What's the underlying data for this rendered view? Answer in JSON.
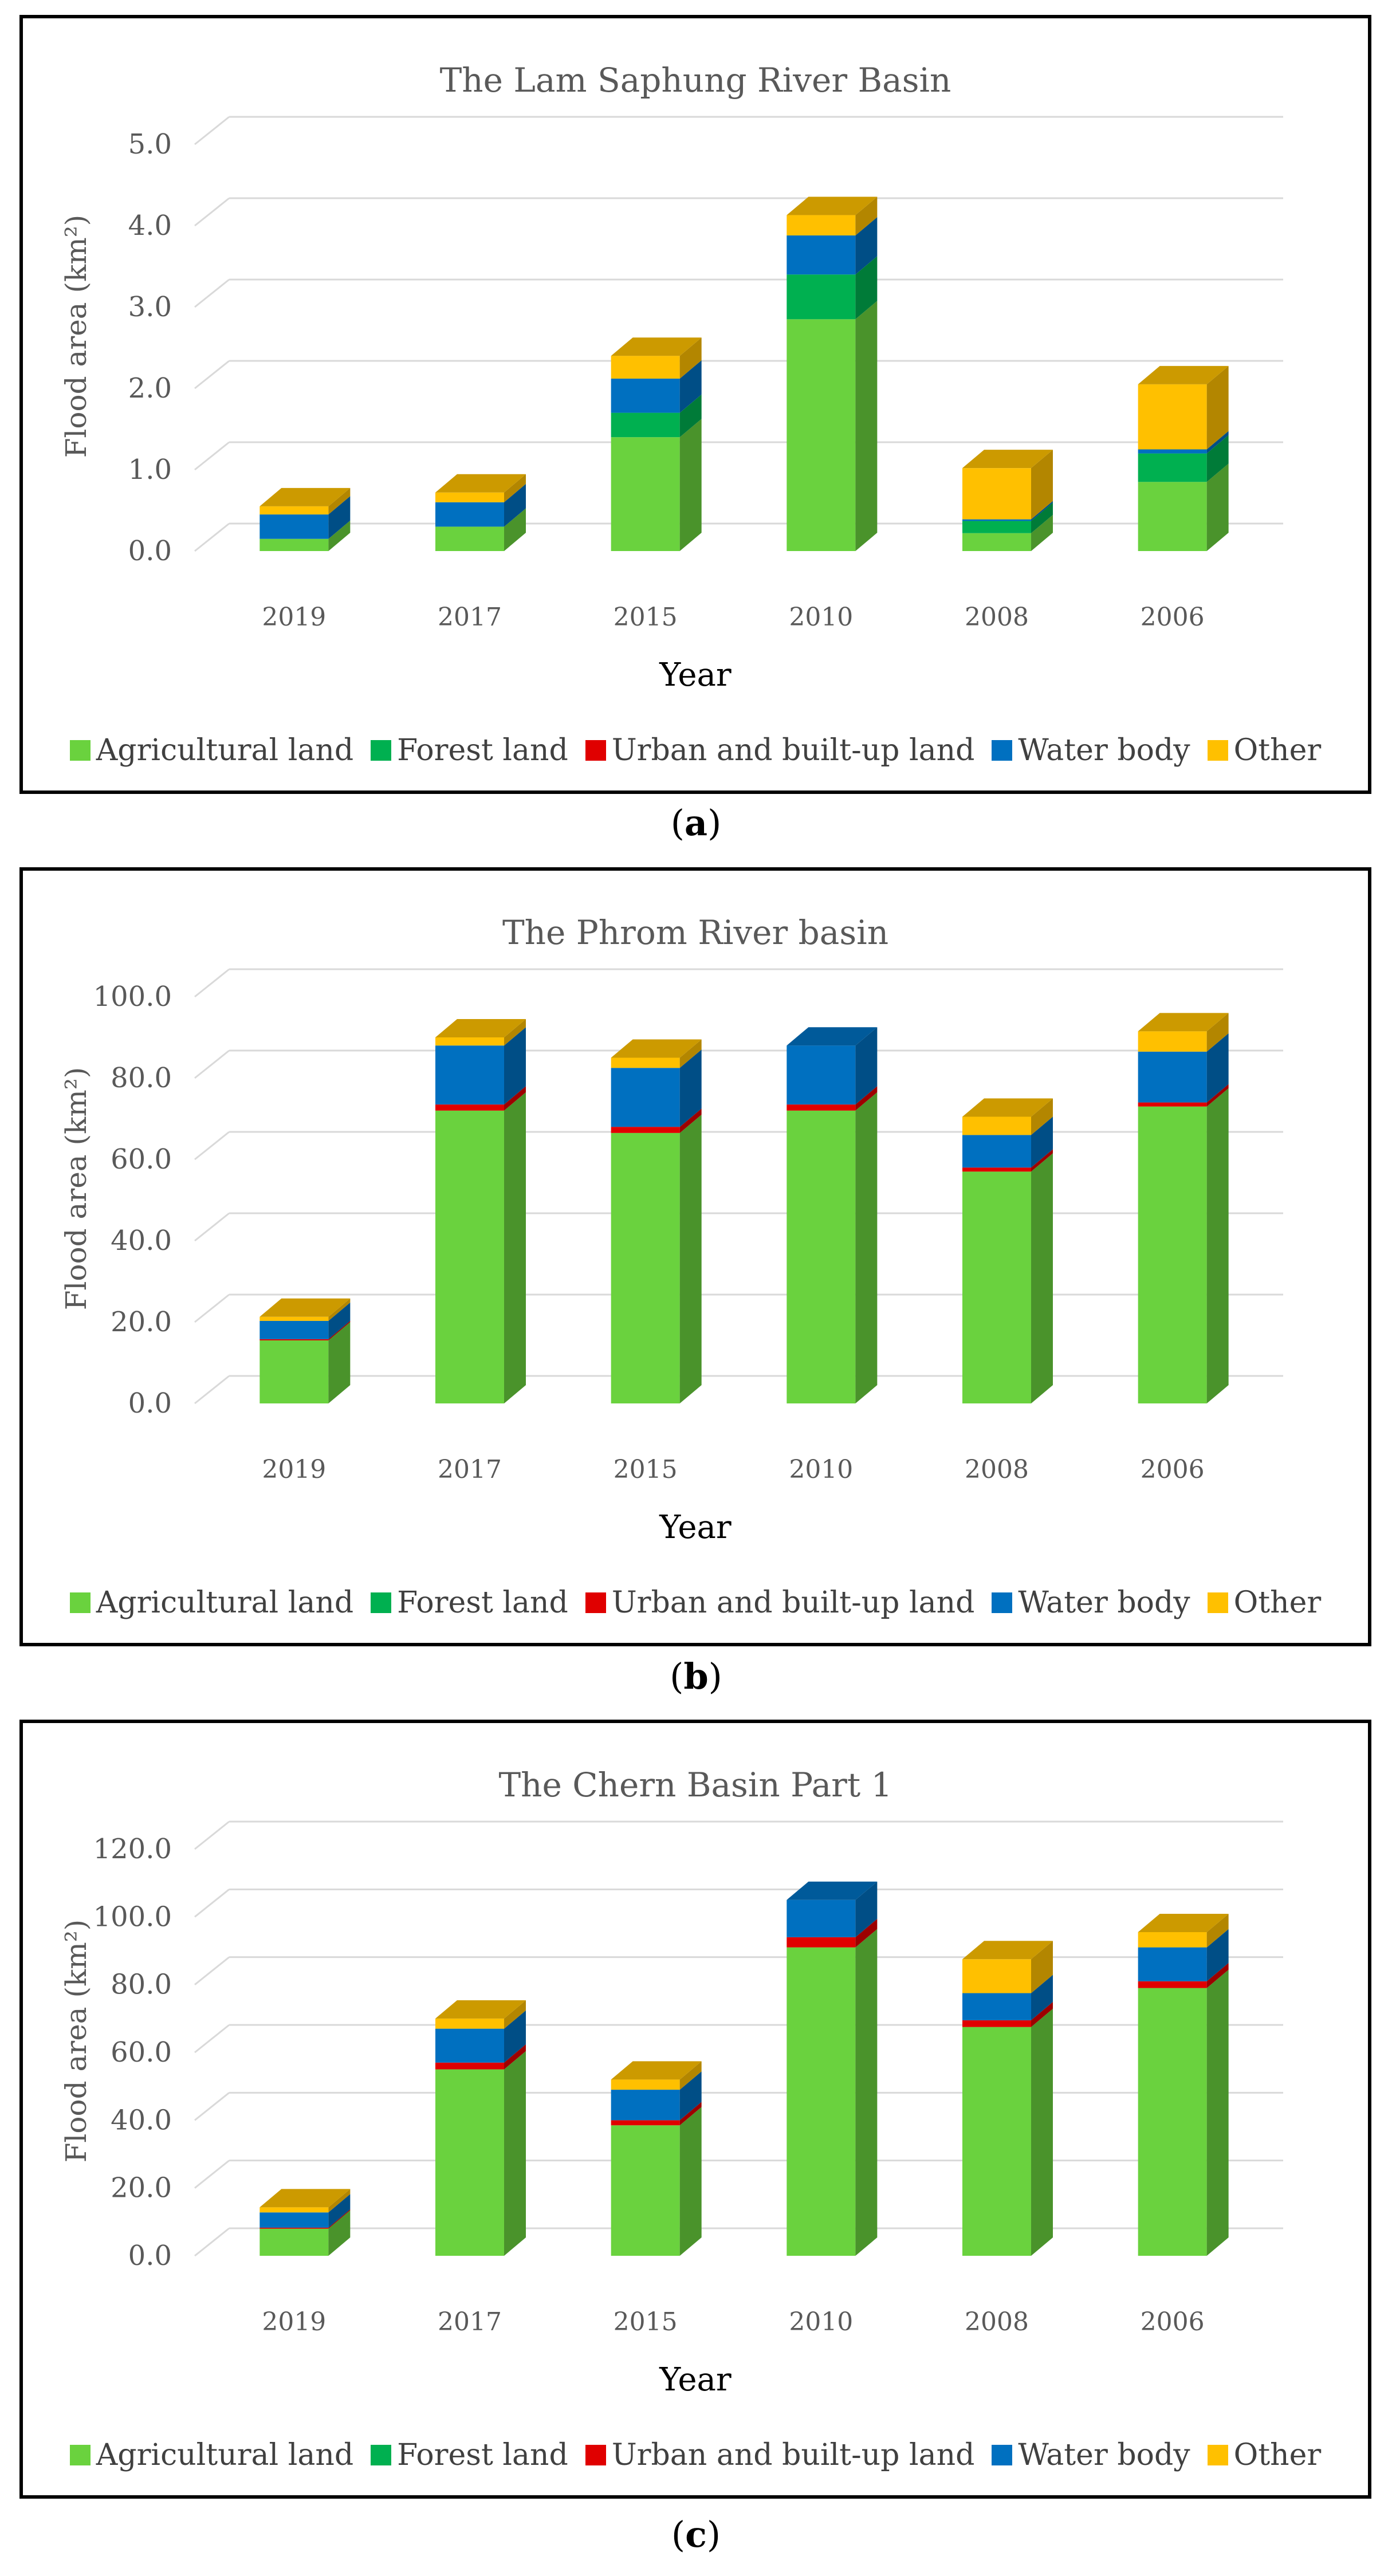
{
  "legend": [
    "Agricultural land",
    "Forest land",
    "Urban and built-up land",
    "Water body",
    "Other"
  ],
  "colors": [
    "#6AD23E",
    "#00B050",
    "#E00000",
    "#0070C0",
    "#FFC000"
  ],
  "captions": [
    "a",
    "b",
    "c"
  ],
  "chart_data": [
    {
      "type": "bar",
      "stacked": true,
      "title": "The Lam Saphung River Basin",
      "xlabel": "Year",
      "ylabel": "Flood area (km²)",
      "ylim": [
        0,
        5
      ],
      "yticks": [
        "0.0",
        "1.0",
        "2.0",
        "3.0",
        "4.0",
        "5.0"
      ],
      "categories": [
        "2019",
        "2017",
        "2015",
        "2010",
        "2008",
        "2006"
      ],
      "series": [
        {
          "name": "Agricultural land",
          "values": [
            0.15,
            0.3,
            1.4,
            2.85,
            0.22,
            0.85
          ]
        },
        {
          "name": "Forest land",
          "values": [
            0.0,
            0.0,
            0.3,
            0.55,
            0.15,
            0.35
          ]
        },
        {
          "name": "Urban and built-up land",
          "values": [
            0.0,
            0.0,
            0.0,
            0.0,
            0.0,
            0.0
          ]
        },
        {
          "name": "Water body",
          "values": [
            0.3,
            0.3,
            0.42,
            0.48,
            0.02,
            0.05
          ]
        },
        {
          "name": "Other",
          "values": [
            0.1,
            0.12,
            0.28,
            0.25,
            0.63,
            0.8
          ]
        }
      ]
    },
    {
      "type": "bar",
      "stacked": true,
      "title": "The Phrom River basin",
      "xlabel": "Year",
      "ylabel": "Flood area (km²)",
      "ylim": [
        0,
        100
      ],
      "yticks": [
        "0.0",
        "20.0",
        "40.0",
        "60.0",
        "80.0",
        "100.0"
      ],
      "categories": [
        "2019",
        "2017",
        "2015",
        "2010",
        "2008",
        "2006"
      ],
      "series": [
        {
          "name": "Agricultural land",
          "values": [
            15.5,
            72.0,
            66.5,
            72.0,
            57.0,
            73.0
          ]
        },
        {
          "name": "Forest land",
          "values": [
            0.0,
            0.0,
            0.0,
            0.0,
            0.0,
            0.0
          ]
        },
        {
          "name": "Urban and built-up land",
          "values": [
            0.3,
            1.5,
            1.5,
            1.5,
            1.0,
            1.0
          ]
        },
        {
          "name": "Water body",
          "values": [
            4.5,
            14.5,
            14.5,
            14.5,
            8.0,
            12.5
          ]
        },
        {
          "name": "Other",
          "values": [
            1.0,
            2.0,
            2.5,
            0.0,
            4.5,
            5.0
          ]
        }
      ]
    },
    {
      "type": "bar",
      "stacked": true,
      "title": "The Chern Basin Part 1",
      "xlabel": "Year",
      "ylabel": "Flood area (km²)",
      "ylim": [
        0,
        120
      ],
      "yticks": [
        "0.0",
        "20.0",
        "40.0",
        "60.0",
        "80.0",
        "100.0",
        "120.0"
      ],
      "categories": [
        "2019",
        "2017",
        "2015",
        "2010",
        "2008",
        "2006"
      ],
      "series": [
        {
          "name": "Agricultural land",
          "values": [
            8.0,
            55.0,
            38.5,
            91.0,
            67.5,
            79.0
          ]
        },
        {
          "name": "Forest land",
          "values": [
            0.0,
            0.0,
            0.0,
            0.0,
            0.0,
            0.0
          ]
        },
        {
          "name": "Urban and built-up land",
          "values": [
            0.3,
            2.0,
            1.5,
            3.0,
            2.0,
            2.0
          ]
        },
        {
          "name": "Water body",
          "values": [
            4.5,
            10.0,
            9.0,
            11.0,
            8.0,
            10.0
          ]
        },
        {
          "name": "Other",
          "values": [
            1.5,
            3.0,
            3.0,
            0.0,
            10.0,
            4.5
          ]
        }
      ]
    }
  ]
}
